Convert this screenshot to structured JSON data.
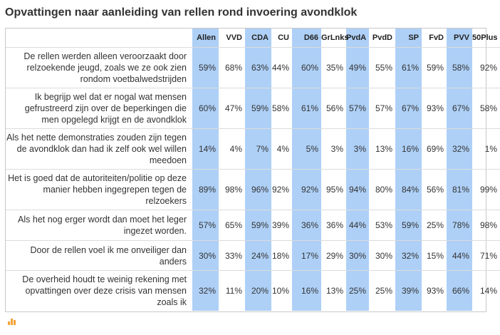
{
  "chart_data": {
    "type": "table",
    "title": "Opvattingen naar aanleiding van rellen rond invoering avondklok",
    "columns": [
      "Allen",
      "VVD",
      "CDA",
      "CU",
      "D66",
      "GrLnks",
      "PvdA",
      "PvdD",
      "SP",
      "FvD",
      "PVV",
      "50Plus"
    ],
    "highlighted_columns": [
      "Allen",
      "CDA",
      "D66",
      "PvdA",
      "SP",
      "PVV"
    ],
    "highlight_color": "#aed0f7",
    "rows": [
      {
        "statement": "De rellen werden alleen veroorzaakt door relzoekende jeugd, zoals we ze ook zien rondom voetbalwedstrijden",
        "values": [
          "59%",
          "68%",
          "63%",
          "44%",
          "60%",
          "35%",
          "49%",
          "55%",
          "61%",
          "59%",
          "58%",
          "92%"
        ]
      },
      {
        "statement": "Ik begrijp wel dat er nogal wat mensen gefrustreerd zijn over de beperkingen die men opgelegd krijgt en de avondklok",
        "values": [
          "60%",
          "47%",
          "59%",
          "58%",
          "61%",
          "56%",
          "57%",
          "57%",
          "67%",
          "93%",
          "67%",
          "58%"
        ]
      },
      {
        "statement": "Als het nette demonstraties zouden zijn tegen de avondklok dan had ik zelf ook wel willen meedoen",
        "values": [
          "14%",
          "4%",
          "7%",
          "4%",
          "5%",
          "3%",
          "3%",
          "13%",
          "16%",
          "69%",
          "32%",
          "1%"
        ]
      },
      {
        "statement": "Het is goed dat de autoriteiten/politie op deze manier hebben ingegrepen tegen de relzoekers",
        "values": [
          "89%",
          "98%",
          "96%",
          "92%",
          "92%",
          "95%",
          "94%",
          "80%",
          "84%",
          "56%",
          "81%",
          "99%"
        ]
      },
      {
        "statement": "Als het nog erger wordt dan moet het leger ingezet worden.",
        "values": [
          "57%",
          "65%",
          "59%",
          "39%",
          "36%",
          "36%",
          "44%",
          "53%",
          "59%",
          "25%",
          "78%",
          "98%"
        ]
      },
      {
        "statement": "Door de rellen voel ik me onveiliger dan anders",
        "values": [
          "30%",
          "33%",
          "24%",
          "18%",
          "17%",
          "29%",
          "30%",
          "30%",
          "32%",
          "15%",
          "44%",
          "71%"
        ]
      },
      {
        "statement": "De overheid houdt te weinig rekening met opvattingen over deze crisis van mensen zoals ik",
        "values": [
          "32%",
          "11%",
          "20%",
          "10%",
          "16%",
          "13%",
          "25%",
          "25%",
          "39%",
          "93%",
          "66%",
          "14%"
        ]
      }
    ]
  },
  "logo": {
    "name": "chart-logo-icon",
    "color": "#f3a33a"
  }
}
